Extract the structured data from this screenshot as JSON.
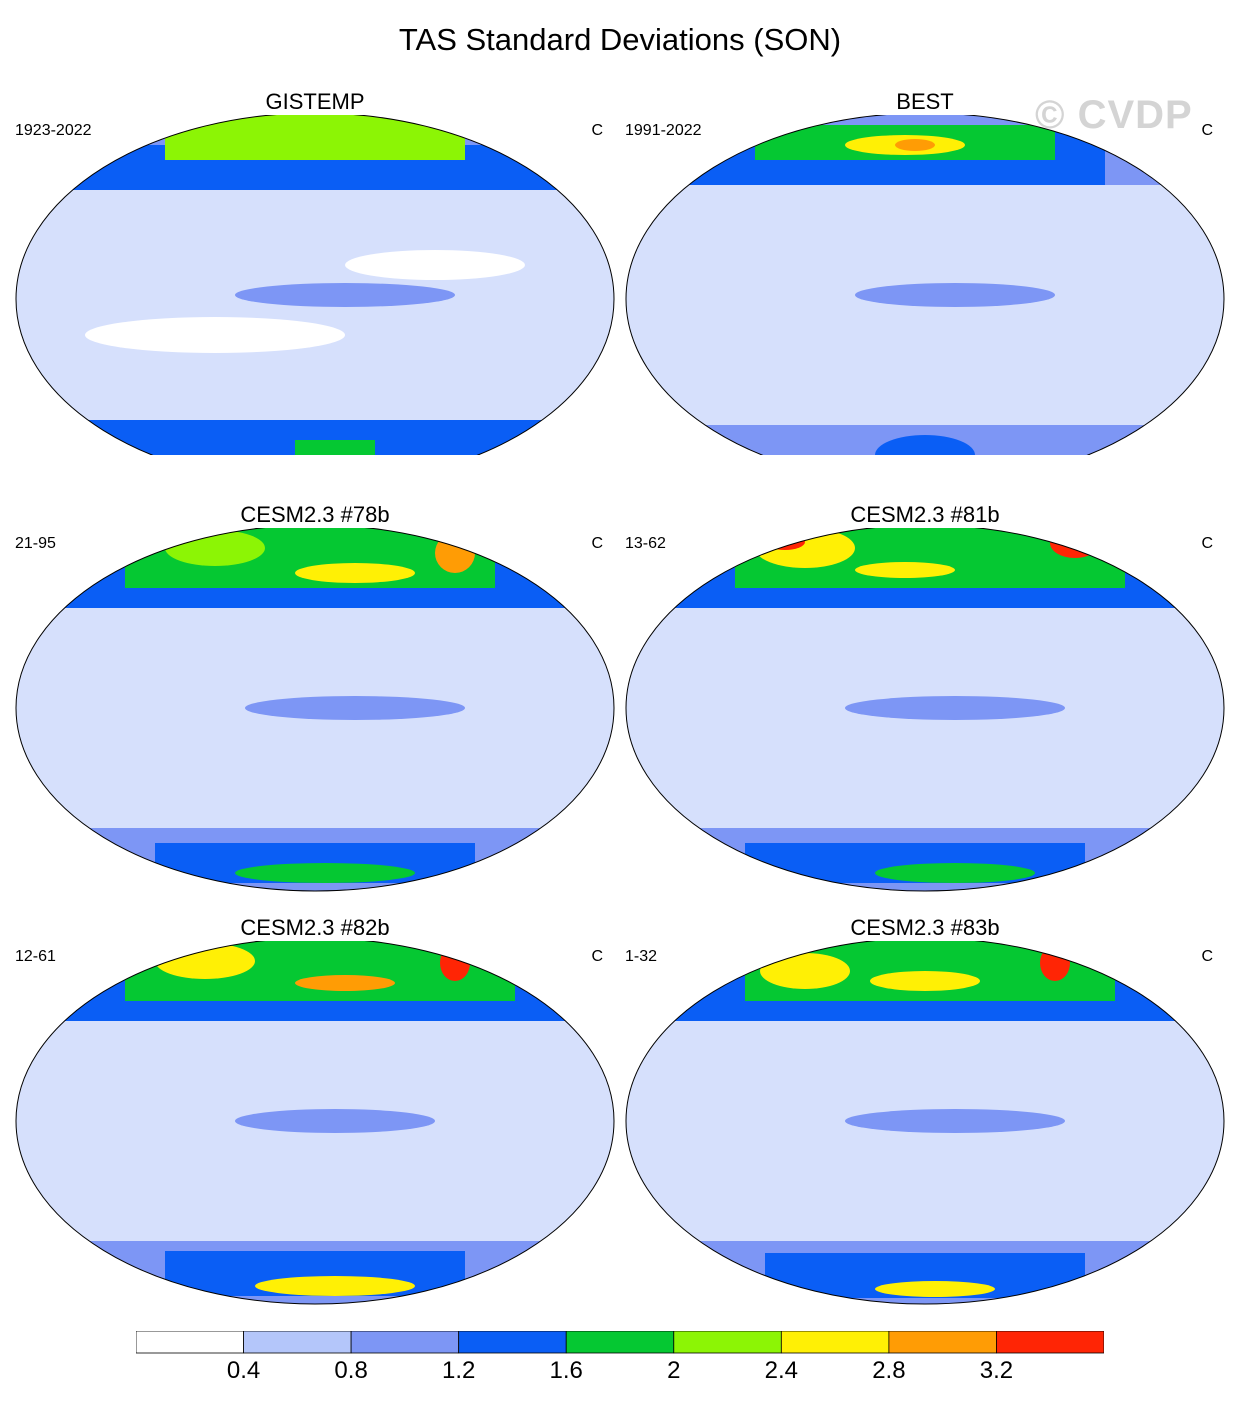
{
  "title": "TAS Standard Deviations (SON)",
  "watermark": "© CVDP",
  "units": "C",
  "panels": [
    {
      "title": "GISTEMP",
      "period": "1923-2022",
      "units": "C"
    },
    {
      "title": "BEST",
      "period": "1991-2022",
      "units": "C"
    },
    {
      "title": "CESM2.3 #78b",
      "period": "21-95",
      "units": "C"
    },
    {
      "title": "CESM2.3 #81b",
      "period": "13-62",
      "units": "C"
    },
    {
      "title": "CESM2.3 #82b",
      "period": "12-61",
      "units": "C"
    },
    {
      "title": "CESM2.3 #83b",
      "period": "1-32",
      "units": "C"
    }
  ],
  "colorbar": {
    "colors": [
      "#ffffff",
      "#b4c6fa",
      "#7d96f5",
      "#0a5ef5",
      "#05c832",
      "#8cf505",
      "#fff005",
      "#ff9c05",
      "#ff2505"
    ],
    "labels": [
      "0.4",
      "0.8",
      "1.2",
      "1.6",
      "2",
      "2.4",
      "2.8",
      "3.2"
    ]
  },
  "colors": {
    "land_outline": "#808080",
    "map_border": "#000000"
  }
}
